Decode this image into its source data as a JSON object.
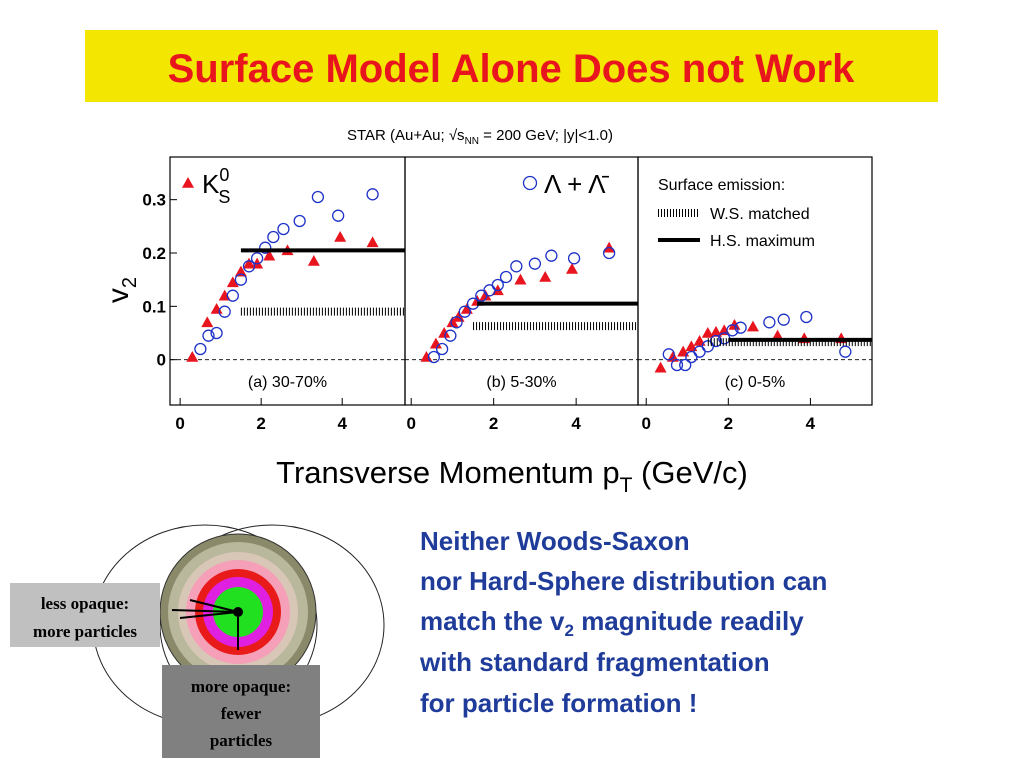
{
  "slide": {
    "title": "Surface Model Alone Does not Work",
    "text_lines": [
      [
        "Neither Woods-Saxon"
      ],
      [
        "nor Hard-Sphere distribution can"
      ],
      [
        "match the v",
        "2",
        " magnitude readily"
      ],
      [
        "with standard fragmentation"
      ],
      [
        "for particle formation !"
      ]
    ],
    "diagram_labels": [
      [
        "less opaque:",
        "more particles"
      ],
      [
        "more opaque:",
        "fewer",
        "particles"
      ]
    ]
  },
  "figure": {
    "header": [
      "STAR (Au+Au; √s",
      "NN",
      " = 200 GeV; |y|<1.0)"
    ],
    "ylabel": [
      "v",
      "2"
    ],
    "xlabel": [
      "Transverse Momentum p",
      "T",
      " (GeV/c)"
    ]
  },
  "chart_data": [
    {
      "type": "scatter",
      "annotation": "(a) 30-70%",
      "xlim": [
        -0.25,
        5.55
      ],
      "ylim": [
        -0.085,
        0.38
      ],
      "xticks": [
        0,
        2,
        4
      ],
      "yticks": [
        0,
        0.1,
        0.2,
        0.3
      ],
      "series": [
        {
          "name": "KS0",
          "color": "#e8141e",
          "marker": "triangle",
          "x": [
            0.3,
            0.67,
            0.9,
            1.1,
            1.3,
            1.5,
            1.7,
            1.9,
            2.2,
            2.65,
            3.3,
            3.95,
            4.75
          ],
          "values": [
            0.005,
            0.07,
            0.095,
            0.12,
            0.145,
            0.165,
            0.18,
            0.18,
            0.195,
            0.205,
            0.185,
            0.23,
            0.22
          ]
        },
        {
          "color": "#1e32c8",
          "marker": "circle",
          "x": [
            0.5,
            0.7,
            0.9,
            1.1,
            1.3,
            1.5,
            1.7,
            1.9,
            2.1,
            2.3,
            2.55,
            2.95,
            3.4,
            3.9,
            4.75
          ],
          "values": [
            0.02,
            0.045,
            0.05,
            0.09,
            0.12,
            0.15,
            0.175,
            0.19,
            0.21,
            0.23,
            0.245,
            0.26,
            0.305,
            0.27,
            0.31
          ]
        },
        {
          "color": "#000000",
          "style": "hatched",
          "x": [
            1.5,
            5.55
          ],
          "values": [
            0.09,
            0.09
          ]
        },
        {
          "color": "#000000",
          "style": "solid",
          "x": [
            1.5,
            5.55
          ],
          "values": [
            0.205,
            0.205
          ]
        }
      ]
    },
    {
      "type": "scatter",
      "annotation": "(b) 5-30%",
      "xlim": [
        -0.15,
        5.5
      ],
      "ylim": [
        -0.085,
        0.38
      ],
      "xticks": [
        0,
        2,
        4
      ],
      "series": [
        {
          "color": "#e8141e",
          "marker": "triangle",
          "x": [
            0.37,
            0.6,
            0.8,
            1.0,
            1.15,
            1.35,
            1.6,
            1.8,
            2.1,
            2.65,
            3.25,
            3.9,
            4.8
          ],
          "values": [
            0.005,
            0.03,
            0.05,
            0.07,
            0.08,
            0.095,
            0.11,
            0.12,
            0.13,
            0.15,
            0.155,
            0.17,
            0.21
          ]
        },
        {
          "name": "Λ + Λ̄",
          "color": "#1e32c8",
          "marker": "circle",
          "x": [
            0.55,
            0.75,
            0.95,
            1.1,
            1.3,
            1.5,
            1.7,
            1.9,
            2.1,
            2.3,
            2.55,
            3.0,
            3.4,
            3.95,
            4.8
          ],
          "values": [
            0.005,
            0.02,
            0.045,
            0.07,
            0.09,
            0.105,
            0.12,
            0.13,
            0.14,
            0.155,
            0.175,
            0.18,
            0.195,
            0.19,
            0.2
          ]
        },
        {
          "color": "#000000",
          "style": "hatched",
          "x": [
            1.5,
            5.5
          ],
          "values": [
            0.063,
            0.063
          ]
        },
        {
          "color": "#000000",
          "style": "solid",
          "x": [
            1.6,
            5.5
          ],
          "values": [
            0.105,
            0.105
          ]
        }
      ]
    },
    {
      "type": "scatter",
      "annotation": "(c) 0-5%",
      "legend_title": "Surface emission:",
      "xlim": [
        -0.2,
        5.5
      ],
      "ylim": [
        -0.085,
        0.38
      ],
      "xticks": [
        0,
        2,
        4
      ],
      "series": [
        {
          "color": "#e8141e",
          "marker": "triangle",
          "x": [
            0.35,
            0.65,
            0.9,
            1.1,
            1.3,
            1.5,
            1.7,
            1.9,
            2.15,
            2.6,
            3.2,
            3.85,
            4.75
          ],
          "values": [
            -0.015,
            0.005,
            0.015,
            0.025,
            0.035,
            0.05,
            0.052,
            0.055,
            0.065,
            0.062,
            0.045,
            0.04,
            0.04
          ]
        },
        {
          "color": "#1e32c8",
          "marker": "circle",
          "x": [
            0.55,
            0.75,
            0.95,
            1.1,
            1.3,
            1.5,
            1.7,
            1.9,
            2.1,
            2.3,
            3.0,
            3.35,
            3.9,
            4.85
          ],
          "values": [
            0.01,
            -0.01,
            -0.01,
            0.005,
            0.015,
            0.025,
            0.035,
            0.04,
            0.055,
            0.06,
            0.07,
            0.075,
            0.08,
            0.015
          ]
        },
        {
          "name": "W.S. matched",
          "color": "#000000",
          "style": "hatched",
          "x": [
            1.5,
            5.5
          ],
          "values": [
            0.033,
            0.033
          ]
        },
        {
          "name": "H.S. maximum",
          "color": "#000000",
          "style": "solid",
          "x": [
            2.0,
            5.5
          ],
          "values": [
            0.037,
            0.037
          ]
        }
      ]
    }
  ]
}
